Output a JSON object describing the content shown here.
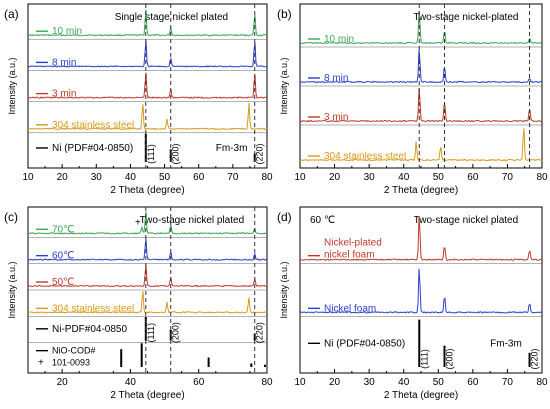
{
  "colors": {
    "green": "#3aa655",
    "blue": "#2a3fd0",
    "red": "#c0392b",
    "orange": "#d99a1a",
    "black": "#000000",
    "dash": "#333333"
  },
  "chart_data": [
    {
      "panel": "(a)",
      "type": "line",
      "title": "Single stage nickel plated",
      "xlabel": "2 Theta (degree)",
      "ylabel": "Intensity (a.u.)",
      "xlim": [
        10,
        80
      ],
      "xticks": [
        10,
        20,
        30,
        40,
        50,
        60,
        70,
        80
      ],
      "dashed_lines": [
        44.5,
        51.8,
        76.4
      ],
      "reference": {
        "name": "Ni (PDF#04-0850)",
        "space_group": "Fm-3m",
        "peaks": [
          {
            "x": 44.5,
            "h": 1.0,
            "hkl": "(111)"
          },
          {
            "x": 51.8,
            "h": 0.45,
            "hkl": "(200)"
          },
          {
            "x": 76.4,
            "h": 0.3,
            "hkl": "(220)"
          }
        ]
      },
      "series": [
        {
          "name": "10 min",
          "color": "green",
          "peaks": [
            [
              44.5,
              0.9
            ],
            [
              51.8,
              0.25
            ],
            [
              76.4,
              0.75
            ]
          ]
        },
        {
          "name": "8 min",
          "color": "blue",
          "peaks": [
            [
              44.5,
              0.9
            ],
            [
              51.8,
              0.3
            ],
            [
              76.4,
              0.9
            ]
          ]
        },
        {
          "name": "3 min",
          "color": "red",
          "peaks": [
            [
              44.5,
              0.9
            ],
            [
              51.8,
              0.3
            ],
            [
              76.4,
              0.85
            ]
          ]
        },
        {
          "name": "304 stainless steel",
          "color": "orange",
          "peaks": [
            [
              43.6,
              0.9
            ],
            [
              50.7,
              0.35
            ],
            [
              74.7,
              0.9
            ]
          ]
        }
      ]
    },
    {
      "panel": "(b)",
      "type": "line",
      "title": "Two-stage nickel-plated",
      "xlabel": "2 Theta (degree)",
      "ylabel": "Intensity (a.u.)",
      "xlim": [
        10,
        80
      ],
      "xticks": [
        10,
        20,
        30,
        40,
        50,
        60,
        70,
        80
      ],
      "dashed_lines": [
        44.5,
        51.8,
        76.4
      ],
      "series": [
        {
          "name": "10 min",
          "color": "green",
          "peaks": [
            [
              44.5,
              0.95
            ],
            [
              51.8,
              0.35
            ],
            [
              76.4,
              0.15
            ]
          ]
        },
        {
          "name": "8 min",
          "color": "blue",
          "peaks": [
            [
              44.5,
              0.95
            ],
            [
              51.8,
              0.45
            ],
            [
              76.4,
              0.12
            ]
          ]
        },
        {
          "name": "3 min",
          "color": "red",
          "peaks": [
            [
              44.5,
              0.95
            ],
            [
              51.8,
              0.55
            ],
            [
              76.4,
              0.35
            ]
          ]
        },
        {
          "name": "304 stainless steel",
          "color": "orange",
          "peaks": [
            [
              43.6,
              0.5
            ],
            [
              50.7,
              0.4
            ],
            [
              74.7,
              0.95
            ]
          ]
        }
      ]
    },
    {
      "panel": "(c)",
      "type": "line",
      "title": "Two-stage nickel plated",
      "xlabel": "2 Theta (degree)",
      "ylabel": "Intensity (a.u.)",
      "xlim": [
        10,
        80
      ],
      "xticks": [
        20,
        40,
        60,
        80
      ],
      "dashed_lines": [
        44.5,
        51.8,
        76.4
      ],
      "reference": {
        "name": "Ni-PDF#04-0850",
        "peaks": [
          {
            "x": 44.5,
            "h": 1.0,
            "hkl": "(111)"
          },
          {
            "x": 51.8,
            "h": 0.45,
            "hkl": "(200)"
          },
          {
            "x": 76.4,
            "h": 0.3,
            "hkl": "(220)"
          }
        ]
      },
      "reference2": {
        "name": "NiO-COD#",
        "name2": "101-0093",
        "marker": "+",
        "peaks": [
          {
            "x": 37.3,
            "h": 0.75
          },
          {
            "x": 43.3,
            "h": 1.0
          },
          {
            "x": 62.9,
            "h": 0.4
          },
          {
            "x": 75.4,
            "h": 0.15
          },
          {
            "x": 79.4,
            "h": 0.1
          }
        ]
      },
      "annotation": {
        "text": "+",
        "x": 42.5
      },
      "series": [
        {
          "name": "70℃",
          "color": "green",
          "peaks": [
            [
              43.3,
              0.25
            ],
            [
              44.5,
              0.9
            ],
            [
              51.8,
              0.35
            ],
            [
              76.4,
              0.2
            ]
          ]
        },
        {
          "name": "60℃",
          "color": "blue",
          "peaks": [
            [
              44.5,
              0.9
            ],
            [
              51.8,
              0.35
            ],
            [
              76.4,
              0.25
            ]
          ]
        },
        {
          "name": "50℃",
          "color": "red",
          "peaks": [
            [
              44.5,
              0.9
            ],
            [
              51.8,
              0.35
            ],
            [
              76.4,
              0.3
            ]
          ]
        },
        {
          "name": "304 stainless steel",
          "color": "orange",
          "peaks": [
            [
              43.6,
              0.9
            ],
            [
              50.7,
              0.4
            ],
            [
              74.7,
              0.6
            ]
          ]
        }
      ]
    },
    {
      "panel": "(d)",
      "type": "line",
      "title": "Two-stage nickel plated",
      "temperature": "60 ℃",
      "xlabel": "2 Theta (degree)",
      "ylabel": "Intensity (a.u.)",
      "xlim": [
        10,
        80
      ],
      "xticks": [
        10,
        20,
        30,
        40,
        50,
        60,
        70,
        80
      ],
      "dashed_lines": [],
      "reference": {
        "name": "Ni (PDF#04-0850)",
        "space_group": "Fm-3m",
        "peaks": [
          {
            "x": 44.5,
            "h": 1.0,
            "hkl": "(111)"
          },
          {
            "x": 51.8,
            "h": 0.45,
            "hkl": "(200)"
          },
          {
            "x": 76.4,
            "h": 0.3,
            "hkl": "(220)"
          }
        ]
      },
      "series": [
        {
          "name": "Nickel-plated",
          "name2": "nickel foam",
          "color": "red",
          "peaks": [
            [
              44.5,
              0.95
            ],
            [
              51.8,
              0.3
            ],
            [
              76.4,
              0.2
            ]
          ]
        },
        {
          "name": "Nickel foam",
          "color": "blue",
          "peaks": [
            [
              44.5,
              0.95
            ],
            [
              51.8,
              0.35
            ],
            [
              76.4,
              0.2
            ]
          ]
        }
      ]
    }
  ]
}
